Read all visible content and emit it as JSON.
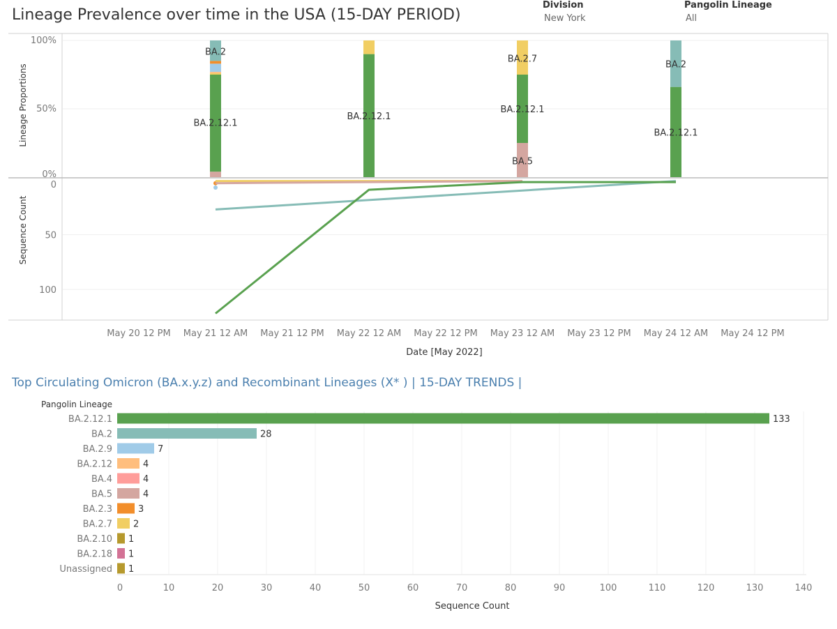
{
  "header": {
    "title": "Lineage Prevalence over time in the USA (15-DAY PERIOD)",
    "filters": [
      {
        "label": "Division",
        "value": "New York"
      },
      {
        "label": "Pangolin Lineage",
        "value": "All"
      }
    ]
  },
  "colors": {
    "BA.2.12.1": "#59a14f",
    "BA.2": "#86bcb6",
    "BA.2.9": "#a0cbe8",
    "BA.2.12": "#ffbe7d",
    "BA.4": "#ff9d9a",
    "BA.5": "#d4a6a0",
    "BA.2.3": "#f28e2b",
    "BA.2.7": "#f1ce63",
    "BA.2.10": "#b6992d",
    "BA.2.18": "#d37295",
    "Unassigned": "#b6992d"
  },
  "chart_data": [
    {
      "type": "bar",
      "subtype": "stacked-100",
      "ylabel": "Lineage Proportions",
      "yticks": [
        "100%",
        "50%",
        "0%"
      ],
      "ylim": [
        0,
        100
      ],
      "dates": [
        "May 21 12 AM",
        "May 22 12 AM",
        "May 23 12 AM",
        "May 24 12 AM"
      ],
      "stacks": [
        {
          "date": "May 21 12 AM",
          "segments": [
            {
              "lineage": "BA.5",
              "pct": 4
            },
            {
              "lineage": "BA.2.12.1",
              "pct": 71
            },
            {
              "lineage": "BA.2.7",
              "pct": 1
            },
            {
              "lineage": "BA.2.12",
              "pct": 1
            },
            {
              "lineage": "BA.2.9",
              "pct": 6
            },
            {
              "lineage": "BA.2.3",
              "pct": 2
            },
            {
              "lineage": "BA.2",
              "pct": 15
            }
          ]
        },
        {
          "date": "May 22 12 AM",
          "segments": [
            {
              "lineage": "BA.2.12.1",
              "pct": 90
            },
            {
              "lineage": "BA.2.7",
              "pct": 10
            }
          ]
        },
        {
          "date": "May 23 12 AM",
          "segments": [
            {
              "lineage": "BA.5",
              "pct": 25
            },
            {
              "lineage": "BA.2.12.1",
              "pct": 50
            },
            {
              "lineage": "BA.2.7",
              "pct": 25
            }
          ]
        },
        {
          "date": "May 24 12 AM",
          "segments": [
            {
              "lineage": "BA.2.12.1",
              "pct": 66
            },
            {
              "lineage": "BA.2",
              "pct": 34
            }
          ]
        }
      ],
      "labels": [
        {
          "date": "May 21 12 AM",
          "text": "BA.2",
          "pct": 92
        },
        {
          "date": "May 21 12 AM",
          "text": "BA.2.12.1",
          "pct": 40
        },
        {
          "date": "May 22 12 AM",
          "text": "BA.2.12.1",
          "pct": 45
        },
        {
          "date": "May 23 12 AM",
          "text": "BA.2.7",
          "pct": 87
        },
        {
          "date": "May 23 12 AM",
          "text": "BA.2.12.1",
          "pct": 50
        },
        {
          "date": "May 23 12 AM",
          "text": "BA.5",
          "pct": 12
        },
        {
          "date": "May 24 12 AM",
          "text": "BA.2",
          "pct": 83
        },
        {
          "date": "May 24 12 AM",
          "text": "BA.2.12.1",
          "pct": 33
        }
      ]
    },
    {
      "type": "line",
      "ylabel": "Sequence Count",
      "xlabel": "Date [May 2022]",
      "y_axis_reversed": true,
      "ylim": [
        0,
        125
      ],
      "yticks": [
        0,
        50,
        100
      ],
      "xticks": [
        "May 20 12 PM",
        "May 21 12 AM",
        "May 21 12 PM",
        "May 22 12 AM",
        "May 22 12 PM",
        "May 23 12 AM",
        "May 23 12 PM",
        "May 24 12 AM",
        "May 24 12 PM"
      ],
      "series": [
        {
          "name": "BA.2.12.1",
          "x": [
            "May 21 12 AM",
            "May 22 12 AM",
            "May 23 12 AM",
            "May 24 12 AM"
          ],
          "y": [
            122,
            9,
            2,
            2
          ]
        },
        {
          "name": "BA.2",
          "x": [
            "May 21 12 AM",
            "May 24 12 AM"
          ],
          "y": [
            27,
            1
          ]
        },
        {
          "name": "BA.5",
          "x": [
            "May 21 12 AM",
            "May 22 12 AM",
            "May 23 12 AM"
          ],
          "y": [
            3,
            2,
            1
          ]
        },
        {
          "name": "BA.2.7",
          "x": [
            "May 21 12 AM",
            "May 22 12 AM",
            "May 23 12 AM"
          ],
          "y": [
            1,
            1,
            1
          ]
        },
        {
          "name": "BA.2.9",
          "x": [
            "May 21 12 AM"
          ],
          "y": [
            7
          ]
        },
        {
          "name": "BA.2.3",
          "x": [
            "May 21 12 AM"
          ],
          "y": [
            3
          ]
        }
      ]
    },
    {
      "type": "bar",
      "orientation": "horizontal",
      "title": "Top Circulating Omicron (BA.x.y.z) and Recombinant Lineages (X* )  | 15-DAY TRENDS |",
      "category_header": "Pangolin Lineage",
      "xlabel": "Sequence Count",
      "xlim": [
        0,
        140
      ],
      "xticks": [
        0,
        10,
        20,
        30,
        40,
        50,
        60,
        70,
        80,
        90,
        100,
        110,
        120,
        130,
        140
      ],
      "categories": [
        "BA.2.12.1",
        "BA.2",
        "BA.2.9",
        "BA.2.12",
        "BA.4",
        "BA.5",
        "BA.2.3",
        "BA.2.7",
        "BA.2.10",
        "BA.2.18",
        "Unassigned"
      ],
      "values": [
        133,
        28,
        7,
        4,
        4,
        4,
        3,
        2,
        1,
        1,
        1
      ]
    }
  ]
}
